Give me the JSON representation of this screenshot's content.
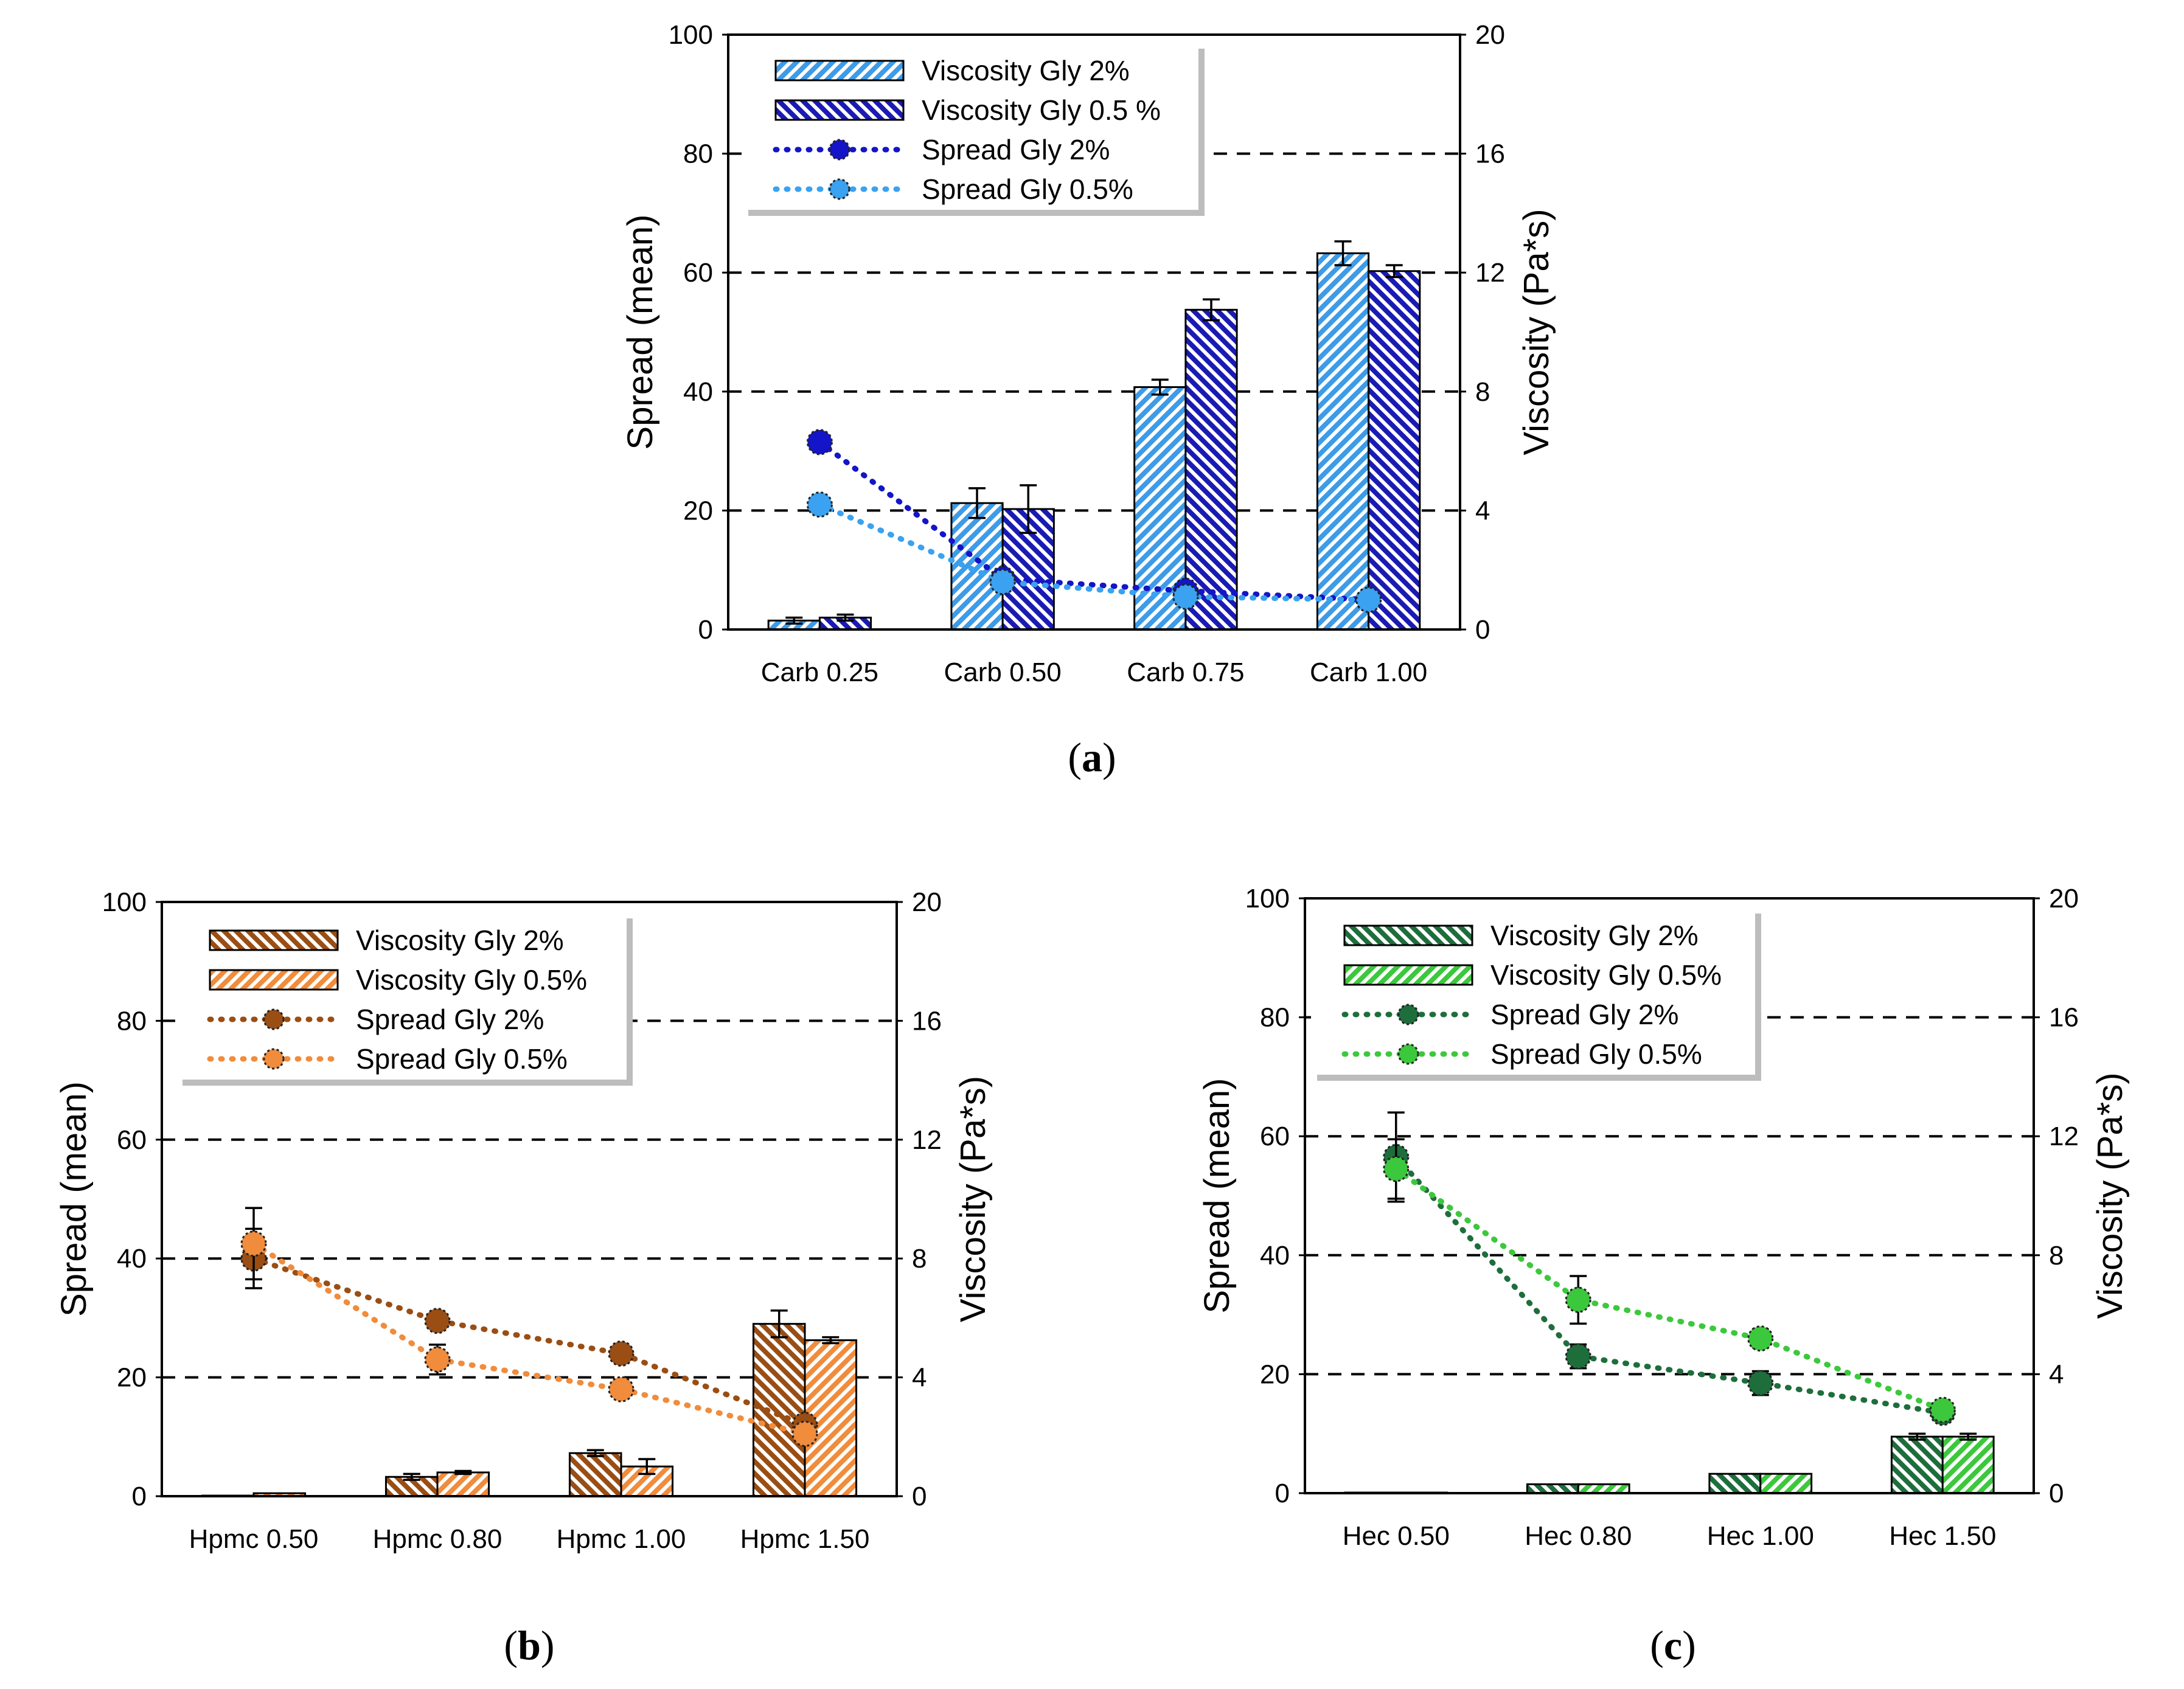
{
  "chart_data": [
    {
      "id": "a",
      "type": "bar",
      "panel_label": "a",
      "categories": [
        "Carb 0.25",
        "Carb 0.50",
        "Carb 0.75",
        "Carb 1.00"
      ],
      "ylabel_left": "Spread (mean)",
      "ylabel_right": "Viscosity (Pa*s)",
      "ylim_left": [
        0,
        100
      ],
      "ylim_right": [
        0,
        20
      ],
      "yticks_left": [
        "0",
        "20",
        "40",
        "60",
        "80",
        "100"
      ],
      "yticks_right": [
        "0",
        "4",
        "8",
        "12",
        "16",
        "20"
      ],
      "grid": "dashed horizontal",
      "legend_position": "top-left",
      "bar_series": [
        {
          "name": "Viscosity Gly 2%",
          "values": [
            0.3,
            4.25,
            8.15,
            12.65
          ],
          "errors": [
            0.1,
            0.5,
            0.25,
            0.4
          ],
          "color": "#3d9be8",
          "hatch": "/"
        },
        {
          "name": "Viscosity Gly 0.5 %",
          "values": [
            0.4,
            4.05,
            10.75,
            12.05
          ],
          "errors": [
            0.1,
            0.8,
            0.35,
            0.2
          ],
          "color": "#1a1ab4",
          "hatch": "\\"
        }
      ],
      "line_series": [
        {
          "name": "Spread Gly 2%",
          "values": [
            31.5,
            8.5,
            6.5,
            5.0
          ],
          "errors": [
            0,
            0,
            0,
            0
          ],
          "color": "#1414c8"
        },
        {
          "name": "Spread Gly 0.5%",
          "values": [
            21.0,
            8.0,
            5.5,
            5.0
          ],
          "errors": [
            0,
            0,
            0,
            0
          ],
          "color": "#3aa2f0"
        }
      ]
    },
    {
      "id": "b",
      "type": "bar",
      "panel_label": "b",
      "categories": [
        "Hpmc 0.50",
        "Hpmc 0.80",
        "Hpmc 1.00",
        "Hpmc 1.50"
      ],
      "ylabel_left": "Spread (mean)",
      "ylabel_right": "Viscosity (Pa*s)",
      "ylim_left": [
        0,
        100
      ],
      "ylim_right": [
        0,
        20
      ],
      "yticks_left": [
        "0",
        "20",
        "40",
        "60",
        "80",
        "100"
      ],
      "yticks_right": [
        "0",
        "4",
        "8",
        "12",
        "16",
        "20"
      ],
      "grid": "dashed horizontal",
      "legend_position": "top-left",
      "bar_series": [
        {
          "name": "Viscosity Gly 2%",
          "values": [
            0.02,
            0.65,
            1.45,
            5.8
          ],
          "errors": [
            0,
            0.1,
            0.1,
            0.45
          ],
          "color": "#9a4e14",
          "hatch": "\\"
        },
        {
          "name": "Viscosity Gly 0.5%",
          "values": [
            0.1,
            0.8,
            1.0,
            5.25
          ],
          "errors": [
            0,
            0.05,
            0.25,
            0.1
          ],
          "color": "#f08c3c",
          "hatch": "/"
        }
      ],
      "line_series": [
        {
          "name": "Spread Gly 2%",
          "values": [
            40.0,
            29.5,
            24.0,
            12.0
          ],
          "errors": [
            5.0,
            0,
            0,
            0
          ],
          "color": "#9a4e14"
        },
        {
          "name": "Spread Gly 0.5%",
          "values": [
            42.5,
            23.0,
            18.0,
            10.5
          ],
          "errors": [
            6.0,
            2.5,
            0,
            0
          ],
          "color": "#f08c3c"
        }
      ]
    },
    {
      "id": "c",
      "type": "bar",
      "panel_label": "c",
      "categories": [
        "Hec 0.50",
        "Hec 0.80",
        "Hec 1.00",
        "Hec 1.50"
      ],
      "ylabel_left": "Spread (mean)",
      "ylabel_right": "Viscosity (Pa*s)",
      "ylim_left": [
        0,
        100
      ],
      "ylim_right": [
        0,
        20
      ],
      "yticks_left": [
        "0",
        "20",
        "40",
        "60",
        "80",
        "100"
      ],
      "yticks_right": [
        "0",
        "4",
        "8",
        "12",
        "16",
        "20"
      ],
      "grid": "dashed horizontal",
      "legend_position": "top-left",
      "bar_series": [
        {
          "name": "Viscosity Gly 2%",
          "values": [
            0.02,
            0.3,
            0.65,
            1.9
          ],
          "errors": [
            0,
            0,
            0,
            0.1
          ],
          "color": "#1e6e3c",
          "hatch": "\\"
        },
        {
          "name": "Viscosity Gly 0.5%",
          "values": [
            0.02,
            0.3,
            0.65,
            1.9
          ],
          "errors": [
            0,
            0,
            0,
            0.1
          ],
          "color": "#3cc83c",
          "hatch": "/"
        }
      ],
      "line_series": [
        {
          "name": "Spread Gly 2%",
          "values": [
            56.5,
            23.0,
            18.5,
            13.5
          ],
          "errors": [
            7.5,
            2.0,
            2.0,
            0
          ],
          "color": "#1e6e3c"
        },
        {
          "name": "Spread Gly 0.5%",
          "values": [
            54.5,
            32.5,
            26.0,
            14.0
          ],
          "errors": [
            5.0,
            4.0,
            1.5,
            0
          ],
          "color": "#3cc83c"
        }
      ]
    }
  ]
}
